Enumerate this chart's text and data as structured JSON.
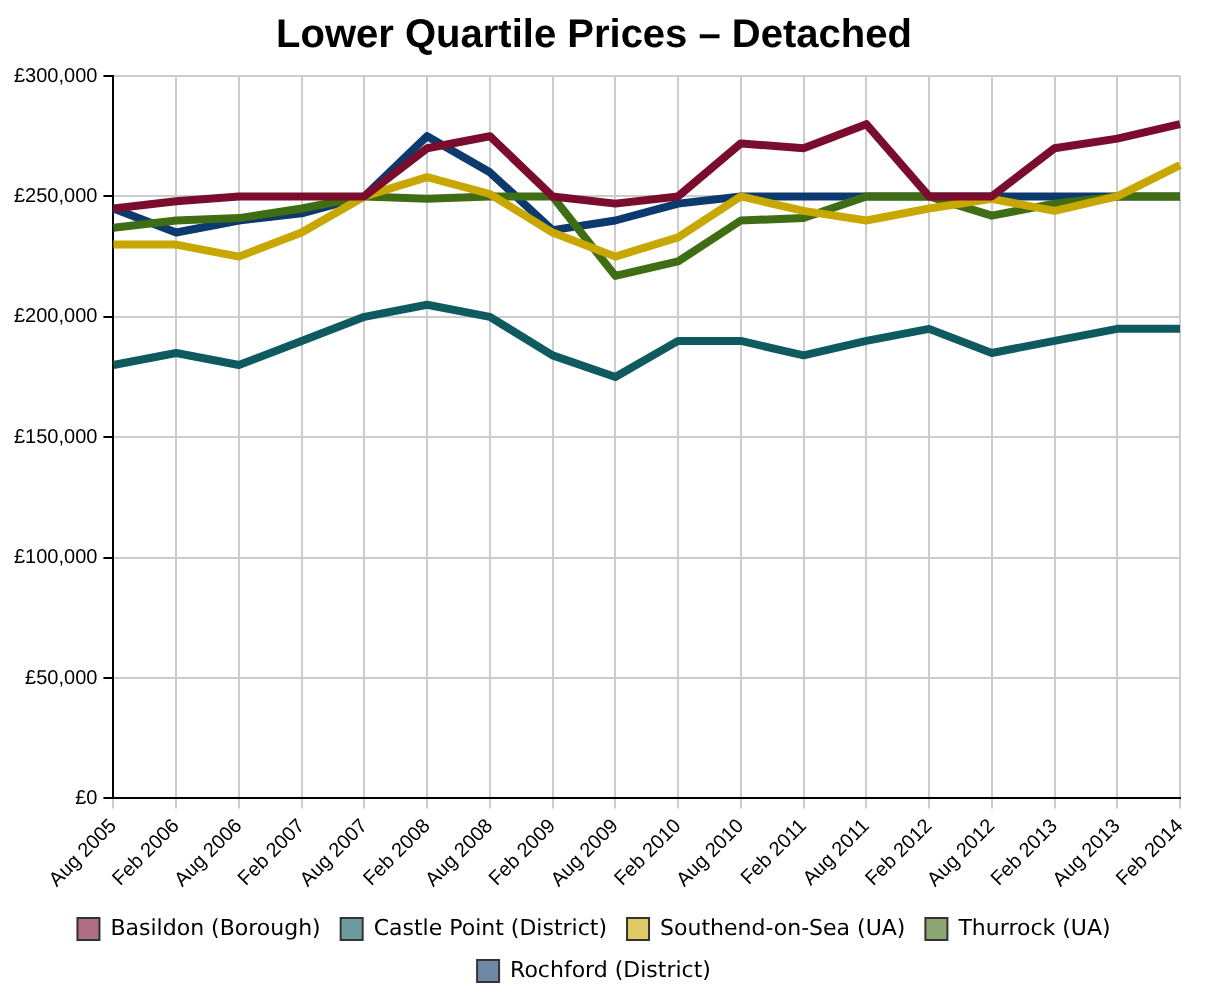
{
  "chart_data": {
    "type": "line",
    "title": "Lower Quartile Prices – Detached",
    "categories": [
      "Aug 2005",
      "Feb 2006",
      "Aug 2006",
      "Feb 2007",
      "Aug 2007",
      "Feb 2008",
      "Aug 2008",
      "Feb 2009",
      "Aug 2009",
      "Feb 2010",
      "Aug 2010",
      "Feb 2011",
      "Aug 2011",
      "Feb 2012",
      "Aug 2012",
      "Feb 2013",
      "Aug 2013",
      "Feb 2014"
    ],
    "series": [
      {
        "name": "Basildon (Borough)",
        "color": "#7a0c2e",
        "values": [
          245000,
          248000,
          250000,
          250000,
          250000,
          270000,
          275000,
          250000,
          247000,
          250000,
          272000,
          270000,
          280000,
          250000,
          250000,
          270000,
          274000,
          280000
        ]
      },
      {
        "name": "Castle Point (District)",
        "color": "#0e5a5e",
        "values": [
          180000,
          185000,
          180000,
          190000,
          200000,
          205000,
          200000,
          184000,
          175000,
          190000,
          190000,
          184000,
          190000,
          195000,
          185000,
          190000,
          195000,
          195000
        ]
      },
      {
        "name": "Southend-on-Sea (UA)",
        "color": "#c8a800",
        "values": [
          230000,
          230000,
          225000,
          235000,
          250000,
          258000,
          251000,
          235000,
          225000,
          233000,
          250000,
          244000,
          240000,
          245000,
          249000,
          244000,
          250000,
          263000
        ]
      },
      {
        "name": "Thurrock (UA)",
        "color": "#3f6d14",
        "values": [
          237000,
          240000,
          241000,
          245000,
          250000,
          249000,
          250000,
          250000,
          217000,
          223000,
          240000,
          241000,
          250000,
          250000,
          242000,
          247000,
          250000,
          250000
        ]
      },
      {
        "name": "Rochford (District)",
        "color": "#0d3a6e",
        "values": [
          245000,
          235000,
          240000,
          243000,
          250000,
          275000,
          260000,
          236000,
          240000,
          247000,
          250000,
          250000,
          250000,
          250000,
          250000,
          250000,
          250000,
          250000
        ]
      }
    ],
    "ylim": [
      0,
      300000
    ],
    "yticks": [
      {
        "value": 0,
        "label": "£0"
      },
      {
        "value": 50000,
        "label": "£50,000"
      },
      {
        "value": 100000,
        "label": "£100,000"
      },
      {
        "value": 150000,
        "label": "£150,000"
      },
      {
        "value": 200000,
        "label": "£200,000"
      },
      {
        "value": 250000,
        "label": "£250,000"
      },
      {
        "value": 300000,
        "label": "£300,000"
      }
    ],
    "grid": true,
    "legend": "bottom",
    "marker": "none",
    "line_style": "solid"
  }
}
